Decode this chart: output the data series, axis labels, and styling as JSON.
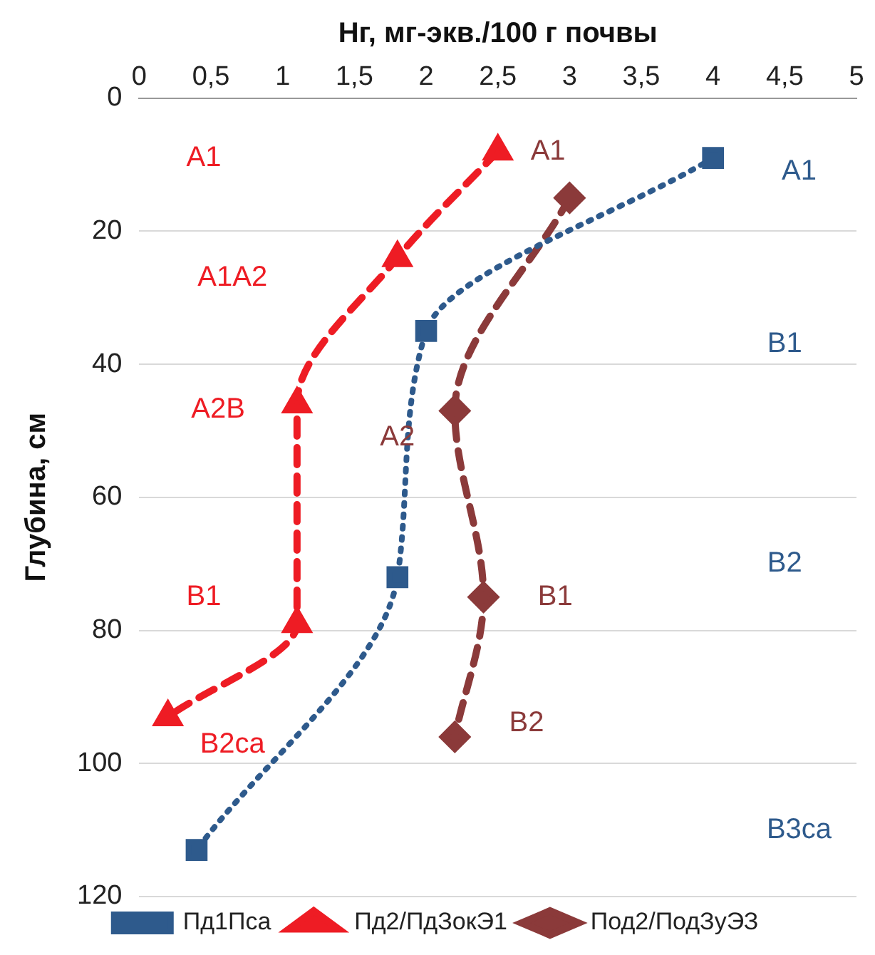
{
  "chart_data": {
    "type": "line",
    "xlabel": "Нг, мг-экв./100 г почвы",
    "ylabel": "Глубина, см",
    "xlim": [
      0,
      5
    ],
    "xticks": [
      0,
      {
        "value": 0.5,
        "label": "0,5"
      },
      1,
      {
        "value": 1.5,
        "label": "1,5"
      },
      2,
      {
        "value": 2.5,
        "label": "2,5"
      },
      3,
      {
        "value": 3.5,
        "label": "3,5"
      },
      4,
      {
        "value": 4.5,
        "label": "4,5"
      },
      5
    ],
    "ylim": [
      120,
      0
    ],
    "yticks": [
      0,
      20,
      40,
      60,
      80,
      100,
      120
    ],
    "grid": "y",
    "legend": "bottom",
    "series": [
      {
        "name": "Пд1Пса",
        "color": "#2e5a8c",
        "marker": "square",
        "line_style": "dotted",
        "x": [
          4,
          2,
          1.8,
          0.4
        ],
        "values": [
          9,
          35,
          72,
          113
        ]
      },
      {
        "name": "Пд2/ПдЗокЭ1",
        "color": "#ee1c24",
        "marker": "triangle",
        "line_style": "dashed",
        "x": [
          2.5,
          1.8,
          1.1,
          1.1,
          0.2
        ],
        "values": [
          8,
          24,
          46,
          79,
          93
        ]
      },
      {
        "name": "Под2/ПодЗуЭЗ",
        "color": "#8b3a3a",
        "marker": "diamond",
        "line_style": "dashed",
        "x": [
          3,
          2.2,
          2.4,
          2.2
        ],
        "values": [
          15,
          47,
          75,
          96
        ]
      }
    ],
    "annotations": [
      "A1",
      "A1A2",
      "A2B",
      "B1",
      "B2ca",
      "A1",
      "A2",
      "B1",
      "B2",
      "A1",
      "B1",
      "B2",
      "B3ca"
    ]
  }
}
